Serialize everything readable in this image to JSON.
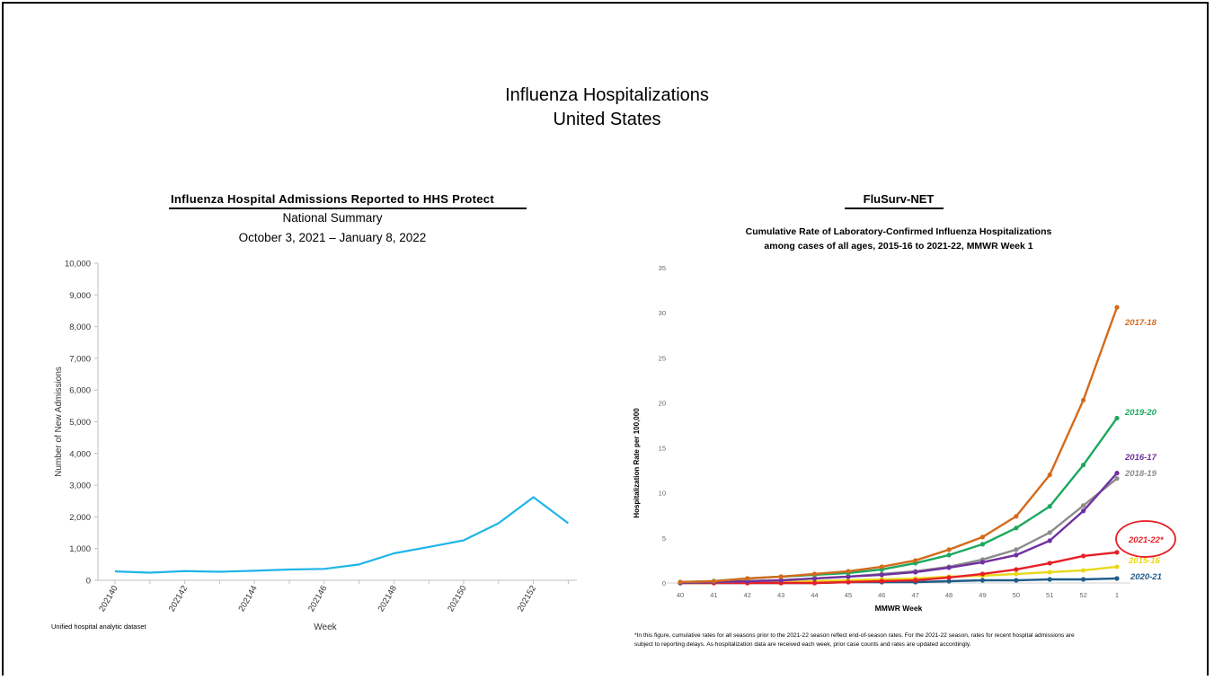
{
  "page": {
    "title_line1": "Influenza Hospitalizations",
    "title_line2": "United States"
  },
  "left": {
    "heading": "Influenza Hospital Admissions Reported to HHS Protect",
    "subtitle1": "National Summary",
    "subtitle2": "October 3, 2021 – January 8, 2022",
    "source": "Unified hospital analytic dataset"
  },
  "right": {
    "heading": "FluSurv-NET",
    "title1": "Cumulative Rate of Laboratory-Confirmed Influenza Hospitalizations",
    "title2": "among cases of all ages, 2015-16 to 2021-22, MMWR Week 1",
    "footnote1": "*In this figure, cumulative rates for all seasons prior to the 2021-22 season reflect end-of-season rates. For the 2021-22 season, rates for recent hospital admissions are",
    "footnote2": "subject to reporting delays. As hospitalization data are received each week, prior case counts and rates are updated accordingly."
  },
  "chart_data": [
    {
      "type": "line",
      "xlabel": "Week",
      "ylabel": "Number of New Admissions",
      "ylim": [
        0,
        10000
      ],
      "yticks": [
        "0",
        "1,000",
        "2,000",
        "3,000",
        "4,000",
        "5,000",
        "6,000",
        "7,000",
        "8,000",
        "9,000",
        "10,000"
      ],
      "xtick_labels": [
        "202140",
        "202142",
        "202144",
        "202146",
        "202148",
        "202150",
        "202152"
      ],
      "x": [
        "202140",
        "202141",
        "202142",
        "202143",
        "202144",
        "202145",
        "202146",
        "202147",
        "202148",
        "202149",
        "202150",
        "202151",
        "202152",
        "202201"
      ],
      "series": [
        {
          "color": "#1fb5e8",
          "values": [
            280,
            240,
            290,
            270,
            300,
            340,
            360,
            500,
            850,
            1050,
            1260,
            1800,
            2620,
            1800
          ]
        }
      ],
      "grid": false
    },
    {
      "type": "line",
      "xlabel": "MMWR Week",
      "ylabel": "Hospitalization  Rate per 100,000",
      "ylim": [
        0,
        35
      ],
      "yticks": [
        "0",
        "5",
        "10",
        "15",
        "20",
        "25",
        "30",
        "35"
      ],
      "x": [
        "40",
        "41",
        "42",
        "43",
        "44",
        "45",
        "46",
        "47",
        "48",
        "49",
        "50",
        "51",
        "52",
        "1"
      ],
      "series": [
        {
          "name": "2017-18",
          "color": "#d46a1c",
          "values": [
            0.1,
            0.2,
            0.5,
            0.7,
            1.0,
            1.3,
            1.8,
            2.5,
            3.7,
            5.1,
            7.4,
            12.0,
            20.3,
            30.6
          ]
        },
        {
          "name": "2019-20",
          "color": "#1ca85f",
          "values": [
            0.1,
            0.2,
            0.5,
            0.7,
            0.9,
            1.1,
            1.5,
            2.2,
            3.1,
            4.3,
            6.1,
            8.5,
            13.1,
            18.3
          ]
        },
        {
          "name": "2016-17",
          "color": "#7030a0",
          "values": [
            0.0,
            0.1,
            0.2,
            0.3,
            0.5,
            0.7,
            0.9,
            1.2,
            1.7,
            2.3,
            3.1,
            4.7,
            8.0,
            12.2
          ]
        },
        {
          "name": "2018-19",
          "color": "#8c8c8c",
          "values": [
            0.0,
            0.1,
            0.2,
            0.3,
            0.5,
            0.7,
            1.0,
            1.3,
            1.8,
            2.6,
            3.7,
            5.6,
            8.6,
            11.6
          ]
        },
        {
          "name": "2021-22*",
          "color": "#e61f26",
          "values": [
            0.0,
            0.0,
            0.0,
            0.0,
            0.0,
            0.1,
            0.2,
            0.3,
            0.6,
            1.0,
            1.5,
            2.2,
            3.0,
            3.4
          ]
        },
        {
          "name": "2015-16",
          "color": "#e9d81a",
          "values": [
            0.0,
            0.0,
            0.1,
            0.1,
            0.2,
            0.3,
            0.4,
            0.5,
            0.7,
            0.8,
            1.0,
            1.2,
            1.4,
            1.8
          ]
        },
        {
          "name": "2020-21",
          "color": "#1f5c8a",
          "values": [
            0.0,
            0.0,
            0.0,
            0.0,
            0.0,
            0.1,
            0.1,
            0.1,
            0.2,
            0.3,
            0.3,
            0.4,
            0.4,
            0.5
          ]
        }
      ],
      "grid": false
    }
  ]
}
